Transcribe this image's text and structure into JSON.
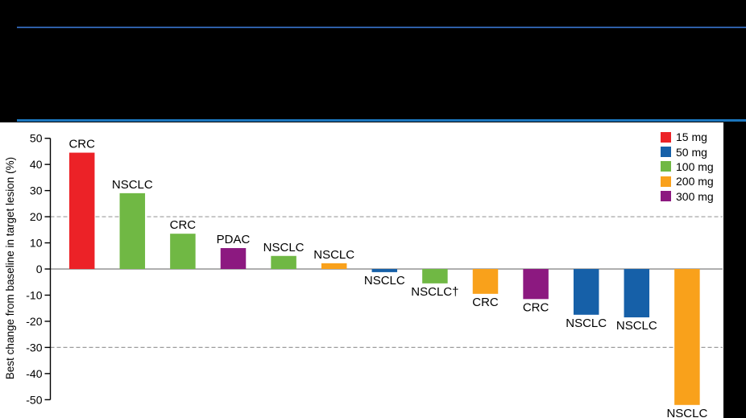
{
  "figure": {
    "top_rule_1_color": "#2E5FA8",
    "top_rule_2_color": "#1B75BC",
    "panel_background": "#FFFFFF",
    "page_background": "#000000"
  },
  "chart_data": {
    "type": "bar",
    "title": "",
    "xlabel": "",
    "ylabel": "Best change from baseline in target lesion (%)",
    "ylim": [
      -50,
      50
    ],
    "yticks": [
      50,
      40,
      30,
      20,
      10,
      0,
      -10,
      -20,
      -30,
      -40,
      -50
    ],
    "reference_lines": [
      20,
      -30
    ],
    "grid": "off",
    "legend_position": "top-right",
    "baseline_color": "#7F7F7F",
    "axis_color": "#000000",
    "reference_line_color": "#9C9C9C",
    "legend": [
      {
        "label": "15 mg",
        "color": "#EC2227"
      },
      {
        "label": "50 mg",
        "color": "#1660A8"
      },
      {
        "label": "100 mg",
        "color": "#70B844"
      },
      {
        "label": "200 mg",
        "color": "#F9A11B"
      },
      {
        "label": "300 mg",
        "color": "#8C1980"
      }
    ],
    "bars": [
      {
        "label": "CRC",
        "dose": "15 mg",
        "value": 44.5
      },
      {
        "label": "NSCLC",
        "dose": "100 mg",
        "value": 29
      },
      {
        "label": "CRC",
        "dose": "100 mg",
        "value": 13.5
      },
      {
        "label": "PDAC",
        "dose": "300 mg",
        "value": 8
      },
      {
        "label": "NSCLC",
        "dose": "100 mg",
        "value": 5
      },
      {
        "label": "NSCLC",
        "dose": "200 mg",
        "value": 2.2
      },
      {
        "label": "NSCLC",
        "dose": "50 mg",
        "value": -1.2
      },
      {
        "label": "NSCLC†",
        "dose": "100 mg",
        "value": -5.5
      },
      {
        "label": "CRC",
        "dose": "200 mg",
        "value": -9.5
      },
      {
        "label": "CRC",
        "dose": "300 mg",
        "value": -11.5
      },
      {
        "label": "NSCLC",
        "dose": "50 mg",
        "value": -17.5
      },
      {
        "label": "NSCLC",
        "dose": "50 mg",
        "value": -18.5
      },
      {
        "label": "NSCLC",
        "dose": "200 mg",
        "value": -52
      }
    ]
  }
}
